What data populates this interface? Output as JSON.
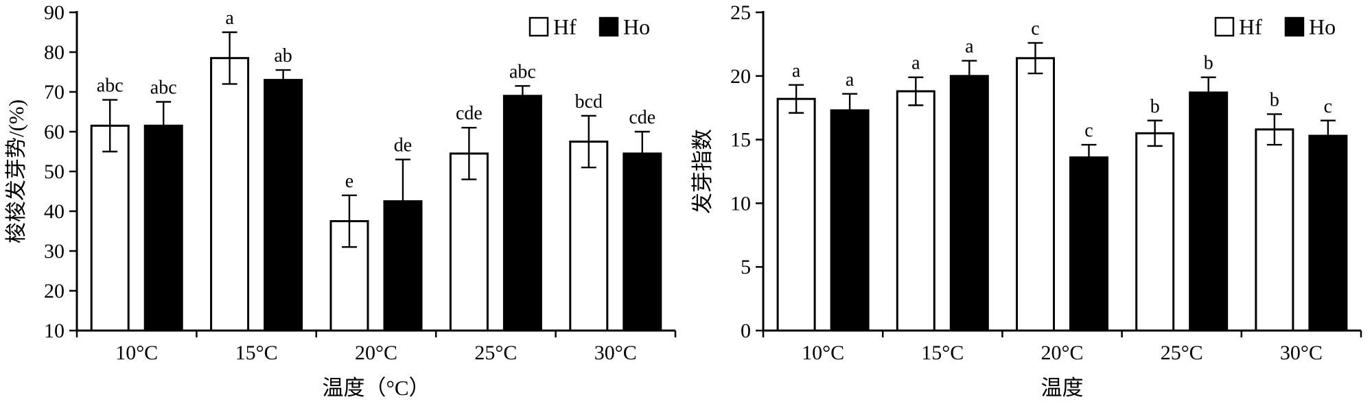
{
  "figure": {
    "background": "#ffffff",
    "axis_color": "#000000",
    "bar_outline_color": "#000000",
    "hf_fill": "#ffffff",
    "ho_fill": "#000000"
  },
  "chart_data": [
    {
      "type": "bar",
      "title": "",
      "ylabel": "梭梭发芽势/(%)",
      "xlabel": "温度（°C）",
      "ylim": [
        10,
        90
      ],
      "yticks": [
        10,
        20,
        30,
        40,
        50,
        60,
        70,
        80,
        90
      ],
      "categories": [
        "10°C",
        "15°C",
        "20°C",
        "25°C",
        "30°C"
      ],
      "grid": false,
      "legend_position": "top-right",
      "legend": [
        "Hf",
        "Ho"
      ],
      "series": [
        {
          "name": "Hf",
          "fill": "#ffffff",
          "values": [
            61.5,
            78.5,
            37.5,
            54.5,
            57.5
          ],
          "errors": [
            6.5,
            6.5,
            6.5,
            6.5,
            6.5
          ],
          "letters": [
            "abc",
            "a",
            "e",
            "cde",
            "bcd"
          ]
        },
        {
          "name": "Ho",
          "fill": "#000000",
          "values": [
            61.5,
            73.0,
            42.5,
            69.0,
            54.5
          ],
          "errors": [
            6.0,
            2.5,
            10.5,
            2.5,
            5.5
          ],
          "letters": [
            "abc",
            "ab",
            "de",
            "abc",
            "cde"
          ]
        }
      ]
    },
    {
      "type": "bar",
      "title": "",
      "ylabel": "发芽指数",
      "xlabel": "温度",
      "ylim": [
        0,
        25
      ],
      "yticks": [
        0,
        5,
        10,
        15,
        20,
        25
      ],
      "categories": [
        "10°C",
        "15°C",
        "20°C",
        "25°C",
        "30°C"
      ],
      "grid": false,
      "legend_position": "top-right",
      "legend": [
        "Hf",
        "Ho"
      ],
      "series": [
        {
          "name": "Hf",
          "fill": "#ffffff",
          "values": [
            18.2,
            18.8,
            21.4,
            15.5,
            15.8
          ],
          "errors": [
            1.1,
            1.1,
            1.2,
            1.0,
            1.2
          ],
          "letters": [
            "a",
            "a",
            "c",
            "b",
            "b"
          ]
        },
        {
          "name": "Ho",
          "fill": "#000000",
          "values": [
            17.3,
            20.0,
            13.6,
            18.7,
            15.3
          ],
          "errors": [
            1.3,
            1.2,
            1.0,
            1.2,
            1.2
          ],
          "letters": [
            "a",
            "a",
            "c",
            "b",
            "c"
          ]
        }
      ]
    }
  ]
}
